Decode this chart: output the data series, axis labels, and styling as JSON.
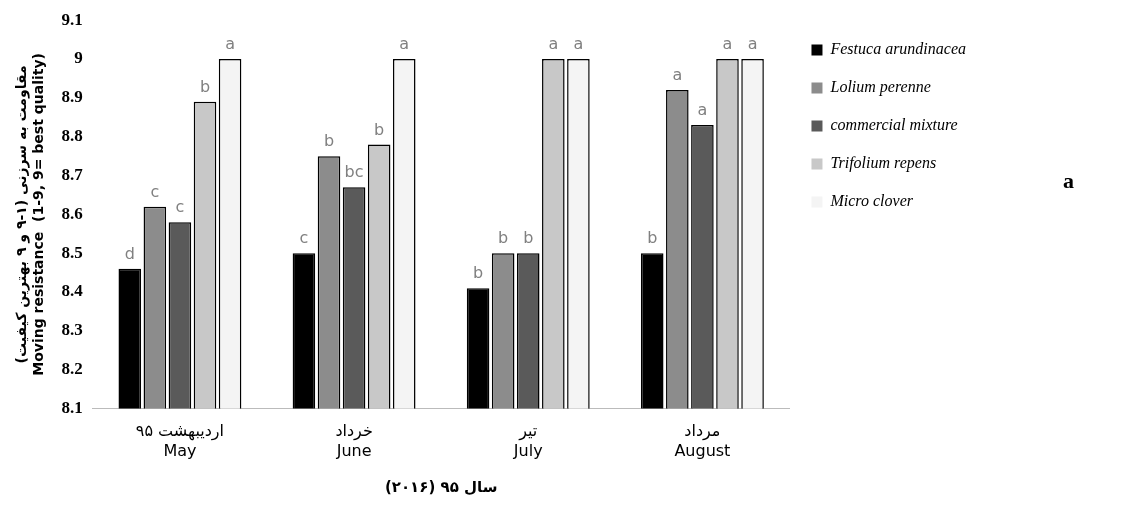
{
  "chart_data": {
    "type": "bar",
    "xlabel": "سال ۹۵ (۲۰۱۶)",
    "ylabel": "مقاومت به سرزنی (۱-۹ و ۹ بهترین کیفیت)\nMoving resistance  (1-9, 9= best quality)",
    "categories": [
      "اردیبهشت ۹۵\nMay",
      "خرداد\nJune",
      "تیر\nJuly",
      "مرداد\nAugust"
    ],
    "series": [
      {
        "name": "Festuca arundinacea",
        "color": "#000000",
        "values": [
          8.46,
          8.5,
          8.41,
          8.5
        ],
        "value_labels": [
          "d",
          "c",
          "b",
          "b"
        ]
      },
      {
        "name": "Lolium perenne",
        "color": "#8c8c8c",
        "values": [
          8.62,
          8.75,
          8.5,
          8.92
        ],
        "value_labels": [
          "c",
          "b",
          "b",
          "a"
        ]
      },
      {
        "name": "commercial mixture",
        "color": "#5a5a5a",
        "values": [
          8.58,
          8.67,
          8.5,
          8.83
        ],
        "value_labels": [
          "c",
          "bc",
          "b",
          "a"
        ]
      },
      {
        "name": "Trifolium repens",
        "color": "#c8c8c8",
        "values": [
          8.89,
          8.78,
          9,
          9
        ],
        "value_labels": [
          "b",
          "b",
          "a",
          "a"
        ]
      },
      {
        "name": "Micro clover",
        "color": "#f4f4f4",
        "values": [
          9,
          9,
          9,
          9
        ],
        "value_labels": [
          "a",
          "a",
          "a",
          "a"
        ]
      }
    ],
    "ylim": [
      8.1,
      9.1
    ],
    "yticks": [
      8.1,
      8.2,
      8.3,
      8.4,
      8.5,
      8.6,
      8.7,
      8.8,
      8.9,
      9,
      9.1
    ],
    "grid": false,
    "legend": "right",
    "annotations": [
      "a"
    ]
  }
}
